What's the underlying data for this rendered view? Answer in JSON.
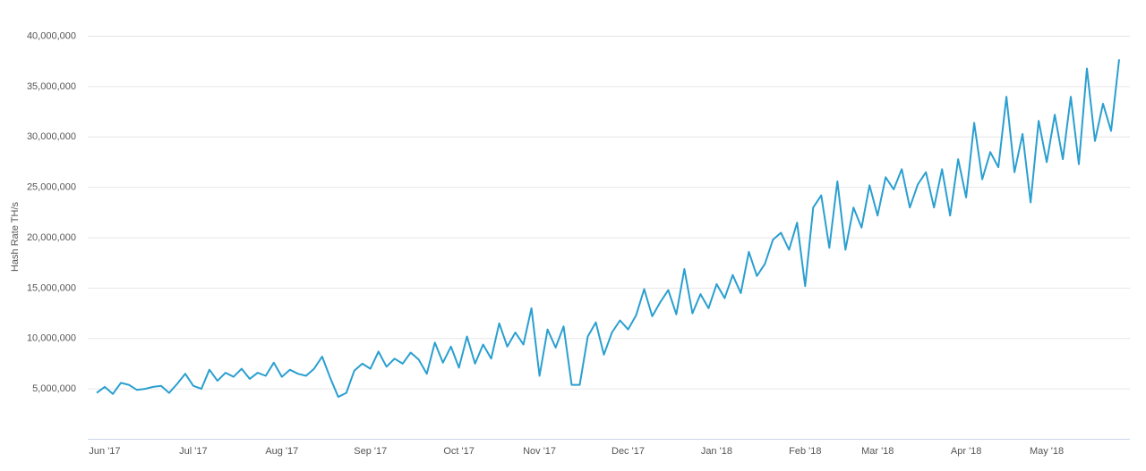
{
  "chart_data": {
    "type": "line",
    "y_label": "Hash Rate TH/s",
    "color": "#2a9fd0",
    "grid": true,
    "ylim": [
      0,
      40000000
    ],
    "yticks": [
      {
        "value": 5000000,
        "label": "5,000,000"
      },
      {
        "value": 10000000,
        "label": "10,000,000"
      },
      {
        "value": 15000000,
        "label": "15,000,000"
      },
      {
        "value": 20000000,
        "label": "20,000,000"
      },
      {
        "value": 25000000,
        "label": "25,000,000"
      },
      {
        "value": 30000000,
        "label": "30,000,000"
      },
      {
        "value": 35000000,
        "label": "35,000,000"
      },
      {
        "value": 40000000,
        "label": "40,000,000"
      }
    ],
    "categories": [
      null,
      "Jun '17",
      null,
      null,
      null,
      null,
      null,
      null,
      null,
      null,
      null,
      null,
      "Jul '17",
      null,
      null,
      null,
      null,
      null,
      null,
      null,
      null,
      null,
      null,
      "Aug '17",
      null,
      null,
      null,
      null,
      null,
      null,
      null,
      null,
      null,
      null,
      "Sep '17",
      null,
      null,
      null,
      null,
      null,
      null,
      null,
      null,
      null,
      null,
      "Oct '17",
      null,
      null,
      null,
      null,
      null,
      null,
      null,
      null,
      null,
      "Nov '17",
      null,
      null,
      null,
      null,
      null,
      null,
      null,
      null,
      null,
      null,
      "Dec '17",
      null,
      null,
      null,
      null,
      null,
      null,
      null,
      null,
      null,
      null,
      "Jan '18",
      null,
      null,
      null,
      null,
      null,
      null,
      null,
      null,
      null,
      null,
      "Feb '18",
      null,
      null,
      null,
      null,
      null,
      null,
      null,
      null,
      "Mar '18",
      null,
      null,
      null,
      null,
      null,
      null,
      null,
      null,
      null,
      null,
      "Apr '18",
      null,
      null,
      null,
      null,
      null,
      null,
      null,
      null,
      null,
      "May '18",
      null,
      null,
      null,
      null,
      null,
      null,
      null,
      null,
      null
    ],
    "values": [
      4600000,
      5200000,
      4500000,
      5600000,
      5400000,
      4900000,
      5000000,
      5200000,
      5300000,
      4600000,
      5500000,
      6500000,
      5300000,
      5000000,
      6900000,
      5800000,
      6600000,
      6200000,
      7000000,
      6000000,
      6600000,
      6300000,
      7600000,
      6200000,
      6900000,
      6500000,
      6300000,
      7000000,
      8200000,
      6100000,
      4200000,
      4600000,
      6800000,
      7500000,
      7000000,
      8700000,
      7200000,
      8000000,
      7500000,
      8600000,
      7900000,
      6500000,
      9600000,
      7600000,
      9200000,
      7100000,
      10200000,
      7500000,
      9400000,
      8000000,
      11500000,
      9200000,
      10600000,
      9400000,
      13000000,
      6300000,
      10900000,
      9100000,
      11200000,
      5400000,
      5400000,
      10200000,
      11600000,
      8400000,
      10600000,
      11800000,
      10900000,
      12300000,
      14900000,
      12200000,
      13600000,
      14800000,
      12400000,
      16900000,
      12500000,
      14400000,
      13000000,
      15400000,
      14000000,
      16300000,
      14500000,
      18600000,
      16200000,
      17400000,
      19800000,
      20500000,
      18800000,
      21500000,
      15200000,
      23000000,
      24200000,
      19000000,
      25600000,
      18800000,
      23000000,
      21000000,
      25200000,
      22200000,
      26000000,
      24800000,
      26800000,
      23000000,
      25300000,
      26500000,
      23000000,
      26800000,
      22200000,
      27800000,
      24000000,
      31400000,
      25800000,
      28500000,
      27000000,
      34000000,
      26500000,
      30300000,
      23500000,
      31600000,
      27500000,
      32200000,
      27800000,
      34000000,
      27300000,
      36800000,
      29600000,
      33300000,
      30600000,
      37700000
    ]
  }
}
